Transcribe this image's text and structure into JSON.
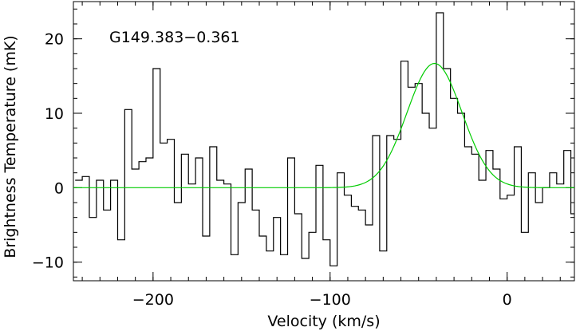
{
  "chart_data": {
    "type": "line",
    "title": "",
    "source_name": "G149.383−0.361",
    "xlabel": "Velocity (km/s)",
    "ylabel": "Brightness Temperature (mK)",
    "xlim": [
      -245,
      38
    ],
    "ylim": [
      -12.5,
      25
    ],
    "xticks": [
      -200,
      -100,
      0
    ],
    "xtick_labels": [
      "−200",
      "−100",
      "0"
    ],
    "yticks": [
      -10,
      0,
      10,
      20
    ],
    "ytick_labels": [
      "−10",
      "0",
      "10",
      "20"
    ],
    "x_minor_step": 10,
    "y_minor_step": 2,
    "grid": false,
    "series": [
      {
        "style": "histogram",
        "color": "#000000",
        "x": [
          -242,
          -238,
          -234,
          -230,
          -226,
          -222,
          -218,
          -214,
          -210,
          -206,
          -202,
          -198,
          -194,
          -190,
          -186,
          -182,
          -178,
          -174,
          -170,
          -166,
          -162,
          -158,
          -154,
          -150,
          -146,
          -142,
          -138,
          -134,
          -130,
          -126,
          -122,
          -118,
          -114,
          -110,
          -106,
          -102,
          -98,
          -94,
          -90,
          -86,
          -82,
          -78,
          -74,
          -70,
          -66,
          -62,
          -58,
          -54,
          -50,
          -46,
          -42,
          -38,
          -34,
          -30,
          -26,
          -22,
          -18,
          -14,
          -10,
          -6,
          -2,
          2,
          6,
          10,
          14,
          18,
          22,
          26,
          30,
          34,
          38
        ],
        "values": [
          1,
          1.5,
          -4,
          1,
          -3,
          1,
          -7,
          10.5,
          2.5,
          3.5,
          4,
          16,
          6,
          6.5,
          -2,
          4.5,
          0.5,
          4,
          -6.5,
          5.5,
          1,
          0.5,
          -9,
          -2,
          2.5,
          -3,
          -6.5,
          -8.5,
          -4,
          -9,
          4,
          -3.5,
          -9.5,
          -6,
          3,
          -7,
          -10.5,
          2,
          -1,
          -2.5,
          -3,
          -5,
          7,
          -8.5,
          7,
          6.5,
          17,
          13.5,
          14,
          10,
          8,
          23.5,
          16,
          12,
          10,
          5.5,
          4.5,
          1,
          5,
          2.5,
          -1.5,
          -1,
          5.5,
          -6,
          2,
          -2,
          0,
          2,
          0.5,
          5,
          -3.5
        ]
      },
      {
        "style": "gaussian-fit",
        "color": "#00cc00",
        "amplitude": 16.7,
        "center": -41,
        "sigma": 15.5,
        "baseline": 0
      }
    ]
  }
}
